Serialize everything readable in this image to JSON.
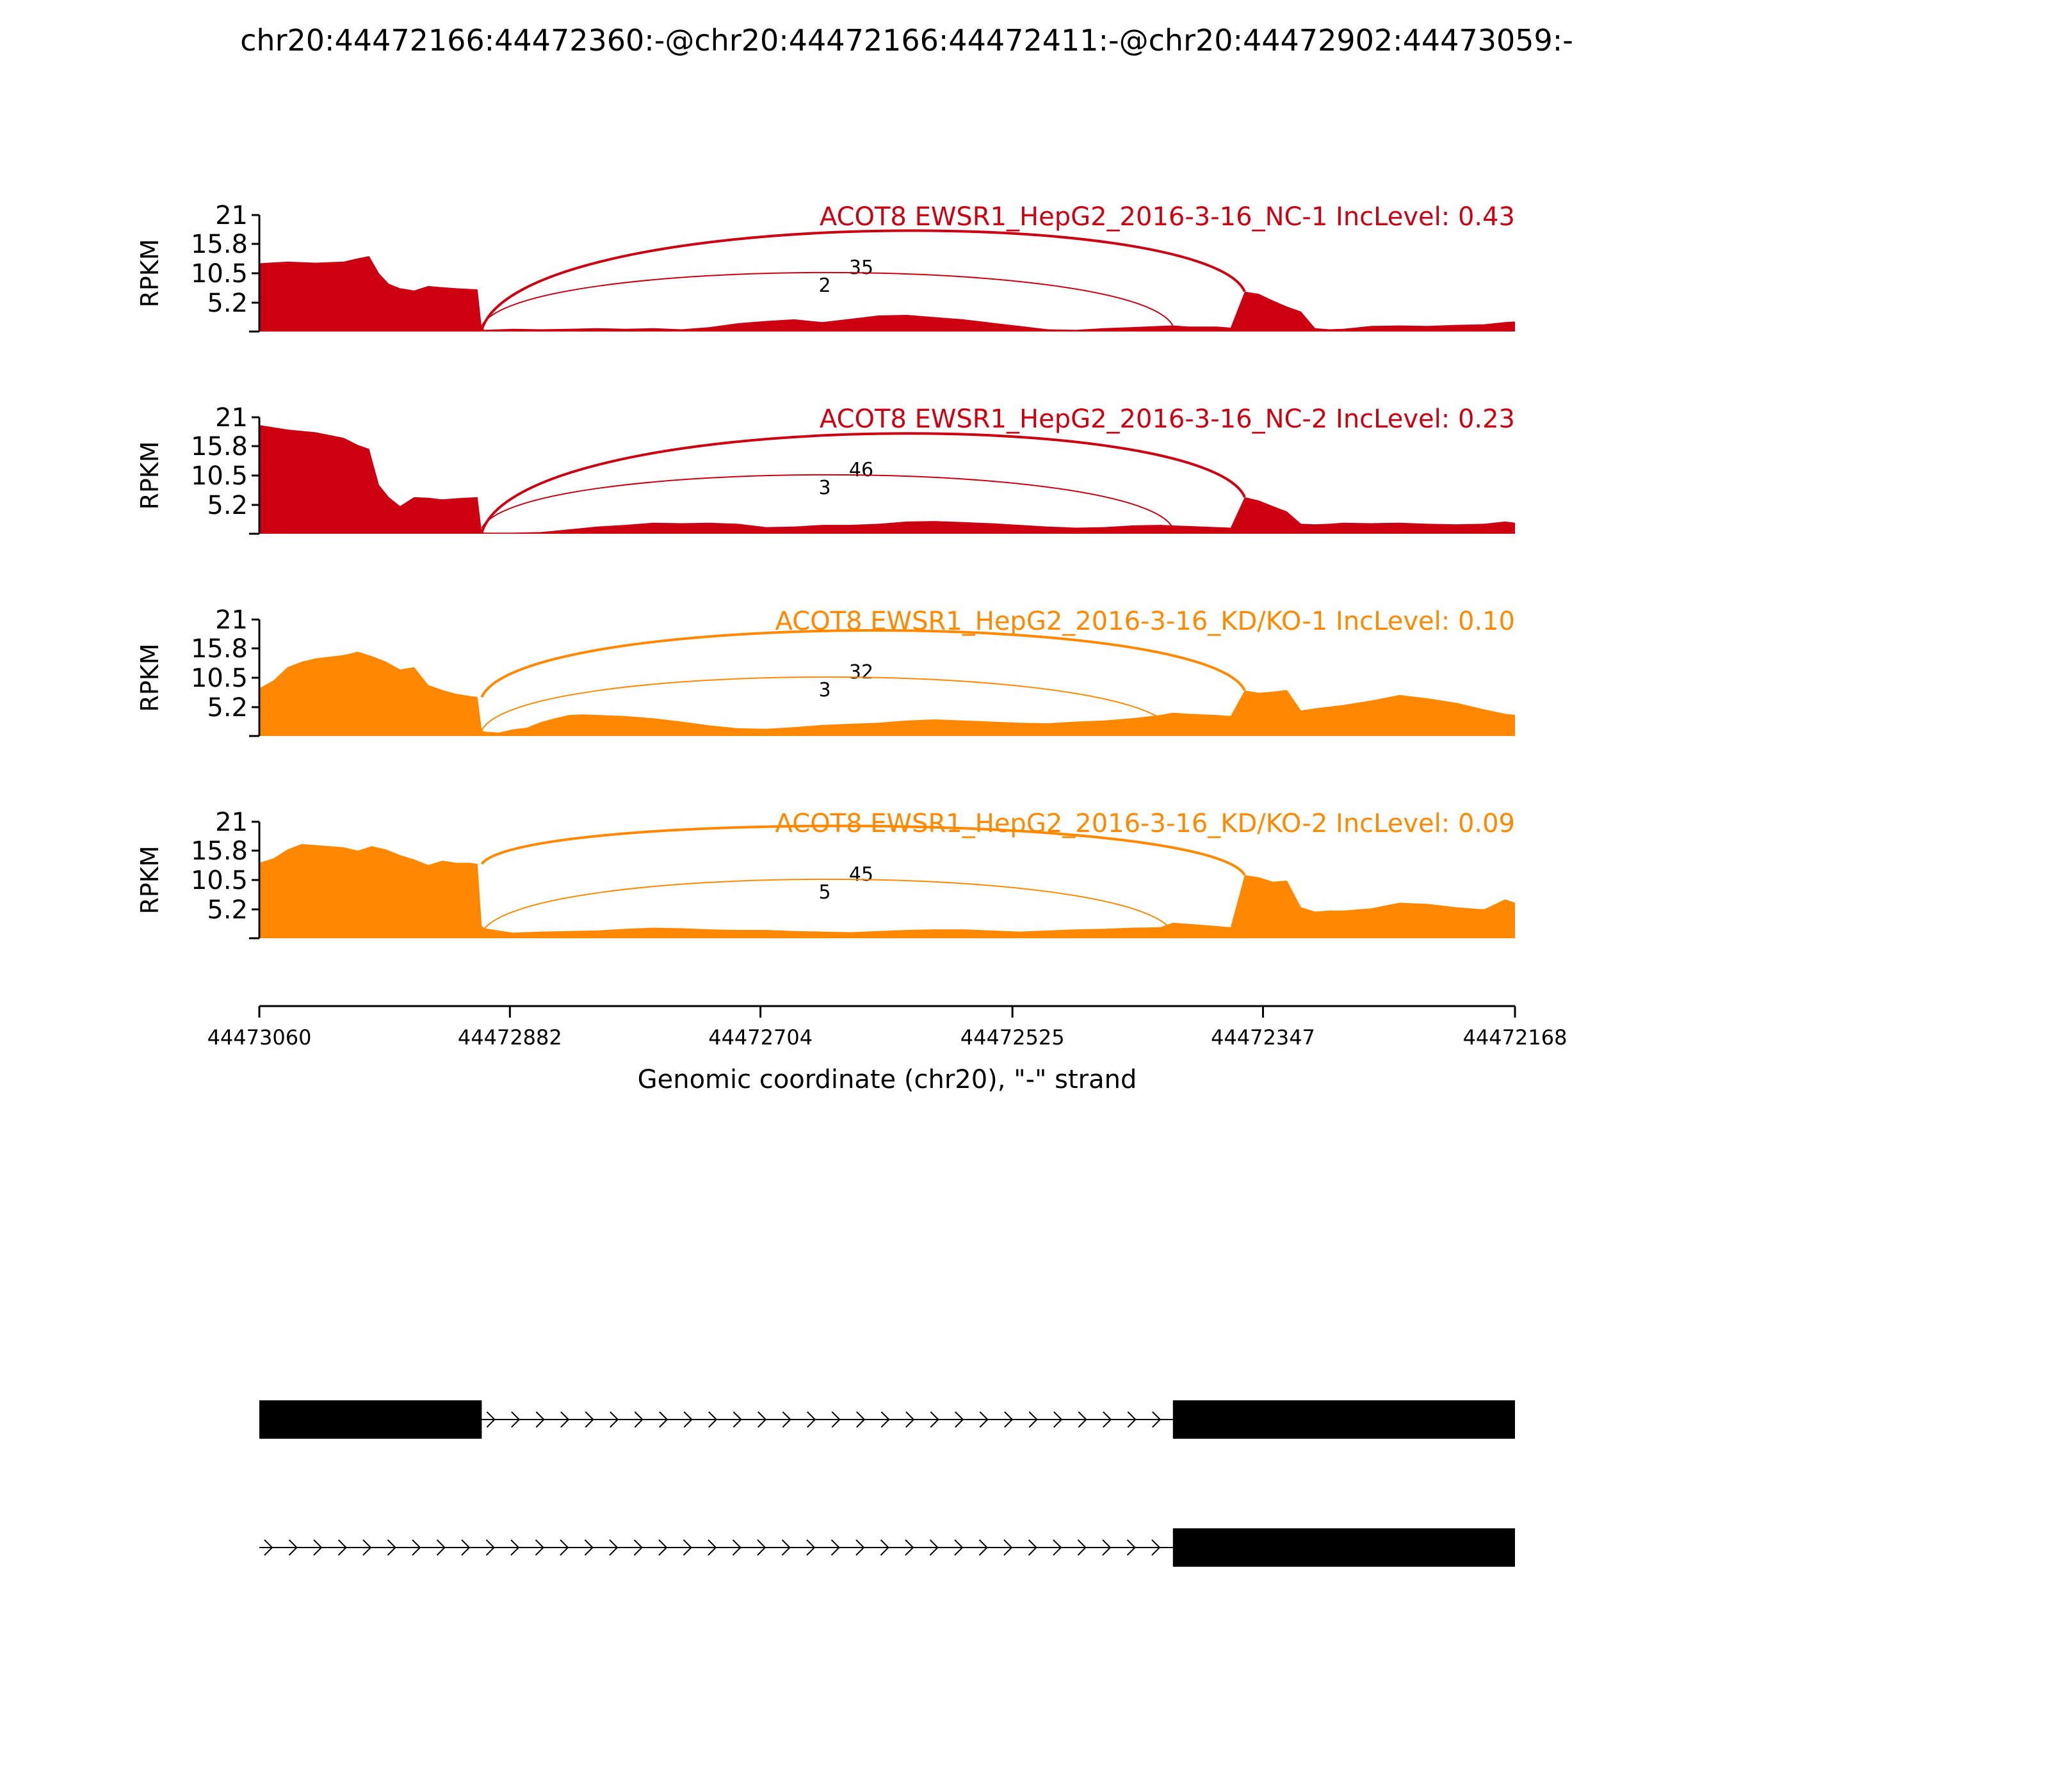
{
  "figure": {
    "title": "chr20:44472166:44472360:-@chr20:44472166:44472411:-@chr20:44472902:44473059:-"
  },
  "chart_data": {
    "type": "area",
    "title": "chr20:44472166:44472360:-@chr20:44472166:44472411:-@chr20:44472902:44473059:-",
    "xlabel": "Genomic coordinate (chr20), \"-\" strand",
    "ylabel": "RPKM",
    "x_ticks": [
      "44473060",
      "44472882",
      "44472704",
      "44472525",
      "44472347",
      "44472168"
    ],
    "xlim": [
      44473060,
      44472168
    ],
    "ylim": [
      0,
      21
    ],
    "y_ticks": [
      "21",
      "15.8",
      "10.5",
      "5.2"
    ],
    "grid": false,
    "panels": [
      {
        "label": "ACOT8 EWSR1_HepG2_2016-3-16_NC-1 IncLevel: 0.43",
        "color": "#cc0011",
        "coverage": {
          "x": [
            44473060,
            44473040,
            44473020,
            44473000,
            44472990,
            44472982,
            44472975,
            44472968,
            44472960,
            44472950,
            44472940,
            44472930,
            44472920,
            44472905,
            44472902,
            44472900,
            44472880,
            44472860,
            44472840,
            44472820,
            44472800,
            44472780,
            44472760,
            44472740,
            44472720,
            44472700,
            44472680,
            44472660,
            44472640,
            44472620,
            44472600,
            44472580,
            44472560,
            44472540,
            44472520,
            44472500,
            44472480,
            44472460,
            44472440,
            44472420,
            44472411,
            44472400,
            44472380,
            44472370,
            44472360,
            44472350,
            44472340,
            44472330,
            44472320,
            44472310,
            44472300,
            44472290,
            44472270,
            44472250,
            44472230,
            44472210,
            44472190,
            44472175,
            44472168
          ],
          "y": [
            12.3,
            12.6,
            12.4,
            12.6,
            13.2,
            13.6,
            10.5,
            8.6,
            7.8,
            7.4,
            8.2,
            8.0,
            7.8,
            7.6,
            0.6,
            0.3,
            0.5,
            0.4,
            0.5,
            0.6,
            0.5,
            0.6,
            0.4,
            0.8,
            1.5,
            1.9,
            2.2,
            1.7,
            2.3,
            2.9,
            3.0,
            2.6,
            2.2,
            1.6,
            1.0,
            0.4,
            0.3,
            0.6,
            0.8,
            1.0,
            1.1,
            0.9,
            0.9,
            0.7,
            7.2,
            6.8,
            5.6,
            4.5,
            3.6,
            0.6,
            0.4,
            0.5,
            1.0,
            1.1,
            1.0,
            1.2,
            1.3,
            1.7,
            1.8
          ]
        },
        "junctions": [
          {
            "label": "35",
            "from": 44472902,
            "to": 44472360
          },
          {
            "label": "2",
            "from": 44472902,
            "to": 44472411
          }
        ]
      },
      {
        "label": "ACOT8 EWSR1_HepG2_2016-3-16_NC-2 IncLevel: 0.23",
        "color": "#cc0011",
        "coverage": {
          "x": [
            44473060,
            44473040,
            44473020,
            44473000,
            44472990,
            44472982,
            44472975,
            44472968,
            44472960,
            44472950,
            44472940,
            44472930,
            44472920,
            44472905,
            44472902,
            44472900,
            44472880,
            44472860,
            44472840,
            44472820,
            44472800,
            44472780,
            44472760,
            44472740,
            44472720,
            44472700,
            44472680,
            44472660,
            44472640,
            44472620,
            44472600,
            44472580,
            44472560,
            44472540,
            44472520,
            44472500,
            44472480,
            44472460,
            44472440,
            44472420,
            44472411,
            44472400,
            44472380,
            44472370,
            44472360,
            44472350,
            44472340,
            44472330,
            44472320,
            44472310,
            44472300,
            44472290,
            44472270,
            44472250,
            44472230,
            44472210,
            44472190,
            44472175,
            44472168
          ],
          "y": [
            19.6,
            18.8,
            18.3,
            17.3,
            16.0,
            15.3,
            8.8,
            6.6,
            5.0,
            6.6,
            6.5,
            6.2,
            6.4,
            6.6,
            0.3,
            0.2,
            0.2,
            0.3,
            0.8,
            1.3,
            1.6,
            2.0,
            1.9,
            2.0,
            1.8,
            1.2,
            1.3,
            1.6,
            1.6,
            1.8,
            2.2,
            2.3,
            2.1,
            1.9,
            1.6,
            1.3,
            1.1,
            1.2,
            1.5,
            1.6,
            1.5,
            1.4,
            1.2,
            1.1,
            6.6,
            6.0,
            5.0,
            4.0,
            1.8,
            1.7,
            1.8,
            2.0,
            1.9,
            2.0,
            1.8,
            1.7,
            1.8,
            2.2,
            2.0
          ]
        },
        "junctions": [
          {
            "label": "46",
            "from": 44472902,
            "to": 44472360
          },
          {
            "label": "3",
            "from": 44472902,
            "to": 44472411
          }
        ]
      },
      {
        "label": "ACOT8 EWSR1_HepG2_2016-3-16_KD/KO-1 IncLevel: 0.10",
        "color": "#ff8800",
        "coverage": {
          "x": [
            44473060,
            44473050,
            44473040,
            44473030,
            44473020,
            44473000,
            44472990,
            44472980,
            44472970,
            44472960,
            44472950,
            44472940,
            44472930,
            44472920,
            44472910,
            44472905,
            44472902,
            44472900,
            44472890,
            44472880,
            44472870,
            44472860,
            44472850,
            44472840,
            44472830,
            44472820,
            44472800,
            44472780,
            44472760,
            44472740,
            44472720,
            44472700,
            44472680,
            44472660,
            44472640,
            44472620,
            44472600,
            44472580,
            44472560,
            44472540,
            44472520,
            44472500,
            44472480,
            44472460,
            44472440,
            44472420,
            44472411,
            44472400,
            44472380,
            44472370,
            44472360,
            44472350,
            44472340,
            44472330,
            44472320,
            44472310,
            44472290,
            44472270,
            44472250,
            44472230,
            44472210,
            44472190,
            44472175,
            44472168
          ],
          "y": [
            8.6,
            10.0,
            12.4,
            13.4,
            14.0,
            14.6,
            15.2,
            14.4,
            13.4,
            12.0,
            12.4,
            9.2,
            8.3,
            7.6,
            7.2,
            7.0,
            1.0,
            0.8,
            0.6,
            1.2,
            1.5,
            2.5,
            3.2,
            3.8,
            3.9,
            3.8,
            3.6,
            3.2,
            2.6,
            1.9,
            1.4,
            1.3,
            1.6,
            2.0,
            2.2,
            2.4,
            2.8,
            3.0,
            2.8,
            2.6,
            2.4,
            2.3,
            2.6,
            2.8,
            3.2,
            3.8,
            4.2,
            4.0,
            3.8,
            3.6,
            8.2,
            7.8,
            8.0,
            8.3,
            4.6,
            5.0,
            5.6,
            6.4,
            7.4,
            6.8,
            6.0,
            4.8,
            4.0,
            3.8
          ]
        },
        "junctions": [
          {
            "label": "32",
            "from": 44472902,
            "to": 44472360
          },
          {
            "label": "3",
            "from": 44472902,
            "to": 44472411
          }
        ]
      },
      {
        "label": "ACOT8 EWSR1_HepG2_2016-3-16_KD/KO-2 IncLevel: 0.09",
        "color": "#ff8800",
        "coverage": {
          "x": [
            44473060,
            44473050,
            44473040,
            44473030,
            44473020,
            44473000,
            44472990,
            44472980,
            44472970,
            44472960,
            44472950,
            44472940,
            44472930,
            44472920,
            44472910,
            44472905,
            44472902,
            44472900,
            44472890,
            44472880,
            44472860,
            44472840,
            44472820,
            44472800,
            44472780,
            44472760,
            44472740,
            44472720,
            44472700,
            44472680,
            44472660,
            44472640,
            44472620,
            44472600,
            44472580,
            44472560,
            44472540,
            44472520,
            44472500,
            44472480,
            44472460,
            44472440,
            44472420,
            44472411,
            44472400,
            44472380,
            44472370,
            44472360,
            44472350,
            44472340,
            44472330,
            44472320,
            44472310,
            44472300,
            44472290,
            44472270,
            44472250,
            44472230,
            44472210,
            44472190,
            44472175,
            44472168
          ],
          "y": [
            13.6,
            14.4,
            16.0,
            17.0,
            16.8,
            16.4,
            15.8,
            16.6,
            16.0,
            15.0,
            14.2,
            13.2,
            14.0,
            13.6,
            13.6,
            13.4,
            2.2,
            1.8,
            1.4,
            1.0,
            1.2,
            1.3,
            1.4,
            1.7,
            1.9,
            1.8,
            1.6,
            1.5,
            1.5,
            1.3,
            1.2,
            1.1,
            1.3,
            1.5,
            1.6,
            1.6,
            1.4,
            1.2,
            1.4,
            1.6,
            1.7,
            1.9,
            2.0,
            2.8,
            2.6,
            2.2,
            2.0,
            11.4,
            11.0,
            10.2,
            10.4,
            5.6,
            4.8,
            5.0,
            5.0,
            5.4,
            6.4,
            6.2,
            5.6,
            5.2,
            7.0,
            6.4
          ]
        },
        "junctions": [
          {
            "label": "45",
            "from": 44472902,
            "to": 44472360
          },
          {
            "label": "5",
            "from": 44472902,
            "to": 44472411
          }
        ]
      }
    ],
    "isoforms": [
      {
        "exons": [
          [
            44473060,
            44472902
          ],
          [
            44472411,
            44472168
          ]
        ],
        "intron": [
          44472902,
          44472411
        ]
      },
      {
        "exons": [
          [
            44472411,
            44472168
          ]
        ],
        "intron": [
          44473060,
          44472411
        ]
      }
    ]
  }
}
